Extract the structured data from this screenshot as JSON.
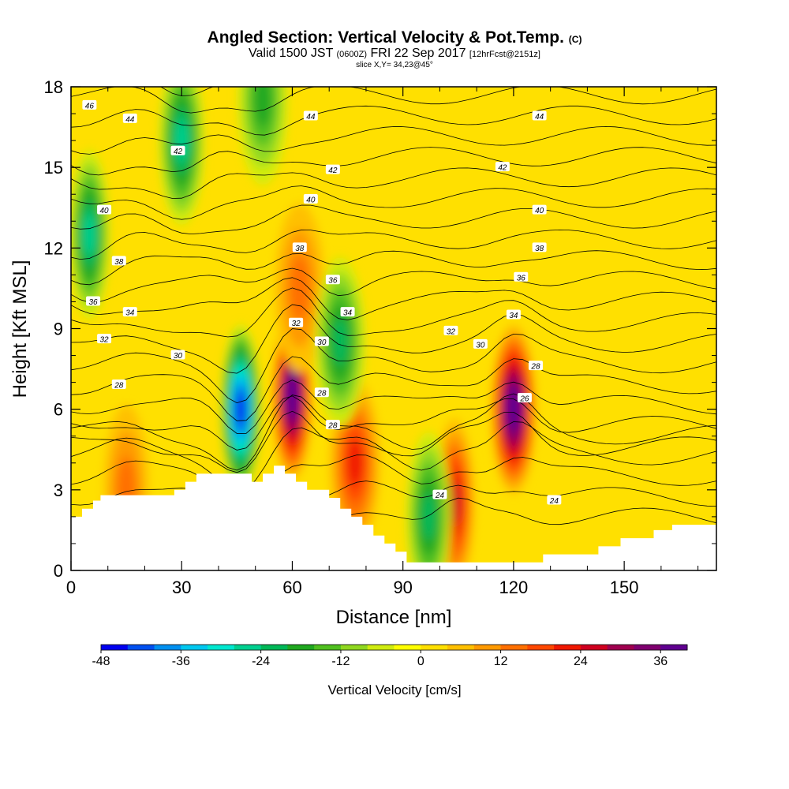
{
  "title": "Angled Section: Vertical Velocity & Pot.Temp.",
  "title_suffix": "(C)",
  "subtitle_main": "Valid 1500 JST",
  "subtitle_utc": "(0600Z)",
  "subtitle_date": "FRI 22 Sep 2017",
  "subtitle_fcst": "[12hrFcst@2151z]",
  "slice_text": "slice X,Y= 34,23@45°",
  "chart_data": {
    "type": "heatmap",
    "xlabel": "Distance [nm]",
    "ylabel": "Height [Kft MSL]",
    "xlim": [
      0,
      175
    ],
    "ylim": [
      0,
      18
    ],
    "xticks": [
      0,
      30,
      60,
      90,
      120,
      150
    ],
    "yticks": [
      0,
      3,
      6,
      9,
      12,
      15,
      18
    ],
    "colorbar": {
      "label": "Vertical Velocity [cm/s]",
      "ticks": [
        -48,
        -36,
        -24,
        -12,
        0,
        12,
        24,
        36
      ],
      "range": [
        -48,
        40
      ],
      "bin_width": 4,
      "colors": [
        "#0000f0",
        "#0050f0",
        "#0090f0",
        "#00c8f0",
        "#00e8d0",
        "#00d090",
        "#00b858",
        "#20a820",
        "#50c020",
        "#90d820",
        "#d0ec10",
        "#ffff00",
        "#ffe000",
        "#ffc000",
        "#ff9a00",
        "#ff7000",
        "#ff4800",
        "#f01800",
        "#d00020",
        "#a00050",
        "#800070",
        "#600090"
      ]
    },
    "updrafts": [
      {
        "x": 60,
        "z": 6.5,
        "w": 40
      },
      {
        "x": 120,
        "z": 6.0,
        "w": 40
      },
      {
        "x": 77,
        "z": 4.0,
        "w": 20
      },
      {
        "x": 104,
        "z": 2.5,
        "w": 22
      },
      {
        "x": 15,
        "z": 3.0,
        "w": 12
      },
      {
        "x": 62,
        "z": 10.5,
        "w": 12
      }
    ],
    "downdrafts": [
      {
        "x": 46,
        "z": 6.0,
        "w": -44
      },
      {
        "x": 97,
        "z": 2.0,
        "w": -20
      },
      {
        "x": 73,
        "z": 8.5,
        "w": -18
      },
      {
        "x": 5,
        "z": 12.5,
        "w": -22
      },
      {
        "x": 30,
        "z": 16.0,
        "w": -22
      },
      {
        "x": 52,
        "z": 17.5,
        "w": -14
      }
    ],
    "theta_contour_interval": 1,
    "theta_labels": [
      {
        "value": "46",
        "x": 5,
        "z": 17.3
      },
      {
        "value": "44",
        "x": 16,
        "z": 16.8
      },
      {
        "value": "44",
        "x": 65,
        "z": 16.9
      },
      {
        "value": "44",
        "x": 127,
        "z": 16.9
      },
      {
        "value": "42",
        "x": 29,
        "z": 15.6
      },
      {
        "value": "42",
        "x": 71,
        "z": 14.9
      },
      {
        "value": "42",
        "x": 117,
        "z": 15.0
      },
      {
        "value": "40",
        "x": 9,
        "z": 13.4
      },
      {
        "value": "40",
        "x": 65,
        "z": 13.8
      },
      {
        "value": "40",
        "x": 127,
        "z": 13.4
      },
      {
        "value": "38",
        "x": 13,
        "z": 11.5
      },
      {
        "value": "38",
        "x": 62,
        "z": 12.0
      },
      {
        "value": "38",
        "x": 127,
        "z": 12.0
      },
      {
        "value": "36",
        "x": 6,
        "z": 10.0
      },
      {
        "value": "36",
        "x": 71,
        "z": 10.8
      },
      {
        "value": "36",
        "x": 122,
        "z": 10.9
      },
      {
        "value": "34",
        "x": 16,
        "z": 9.6
      },
      {
        "value": "34",
        "x": 75,
        "z": 9.6
      },
      {
        "value": "34",
        "x": 120,
        "z": 9.5
      },
      {
        "value": "32",
        "x": 9,
        "z": 8.6
      },
      {
        "value": "32",
        "x": 61,
        "z": 9.2
      },
      {
        "value": "32",
        "x": 103,
        "z": 8.9
      },
      {
        "value": "30",
        "x": 29,
        "z": 8.0
      },
      {
        "value": "30",
        "x": 68,
        "z": 8.5
      },
      {
        "value": "30",
        "x": 111,
        "z": 8.4
      },
      {
        "value": "28",
        "x": 13,
        "z": 6.9
      },
      {
        "value": "28",
        "x": 68,
        "z": 6.6
      },
      {
        "value": "28",
        "x": 126,
        "z": 7.6
      },
      {
        "value": "28",
        "x": 71,
        "z": 5.4
      },
      {
        "value": "26",
        "x": 123,
        "z": 6.4
      },
      {
        "value": "24",
        "x": 100,
        "z": 2.8
      },
      {
        "value": "24",
        "x": 131,
        "z": 2.6
      }
    ],
    "terrain": [
      [
        0,
        2.0
      ],
      [
        3,
        2.0
      ],
      [
        3,
        2.3
      ],
      [
        6,
        2.3
      ],
      [
        6,
        2.6
      ],
      [
        8,
        2.6
      ],
      [
        8,
        2.8
      ],
      [
        28,
        2.8
      ],
      [
        28,
        3.0
      ],
      [
        31,
        3.0
      ],
      [
        31,
        3.3
      ],
      [
        34,
        3.3
      ],
      [
        34,
        3.6
      ],
      [
        49,
        3.6
      ],
      [
        49,
        3.3
      ],
      [
        52,
        3.3
      ],
      [
        52,
        3.6
      ],
      [
        55,
        3.6
      ],
      [
        55,
        3.9
      ],
      [
        58,
        3.9
      ],
      [
        58,
        3.6
      ],
      [
        61,
        3.6
      ],
      [
        61,
        3.3
      ],
      [
        64,
        3.3
      ],
      [
        64,
        3.0
      ],
      [
        70,
        3.0
      ],
      [
        70,
        2.7
      ],
      [
        73,
        2.7
      ],
      [
        73,
        2.3
      ],
      [
        76,
        2.3
      ],
      [
        76,
        2.0
      ],
      [
        79,
        2.0
      ],
      [
        79,
        1.7
      ],
      [
        82,
        1.7
      ],
      [
        82,
        1.3
      ],
      [
        85,
        1.3
      ],
      [
        85,
        1.0
      ],
      [
        88,
        1.0
      ],
      [
        88,
        0.7
      ],
      [
        91,
        0.7
      ],
      [
        91,
        0.3
      ],
      [
        128,
        0.3
      ],
      [
        128,
        0.6
      ],
      [
        143,
        0.6
      ],
      [
        143,
        0.9
      ],
      [
        149,
        0.9
      ],
      [
        149,
        1.2
      ],
      [
        158,
        1.2
      ],
      [
        158,
        1.5
      ],
      [
        163,
        1.5
      ],
      [
        163,
        1.7
      ],
      [
        175,
        1.7
      ]
    ]
  }
}
